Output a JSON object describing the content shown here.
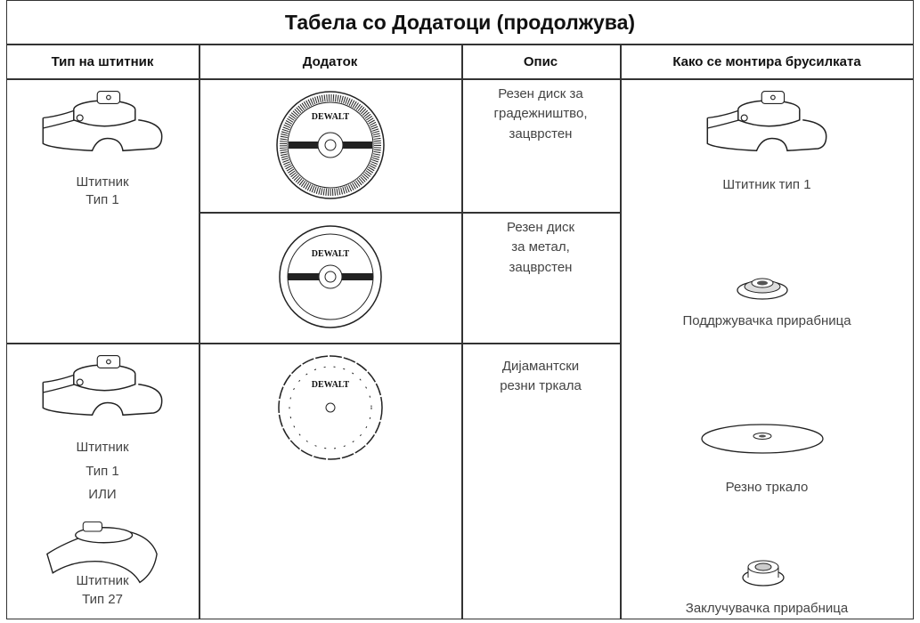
{
  "title": "Табела со Додатоци (продолжува)",
  "headers": [
    "Тип на штитник",
    "Додаток",
    "Опис",
    "Како се монтира брусилката"
  ],
  "rows": [
    {
      "guard": [
        "Штитник",
        "Тип 1"
      ],
      "accessory_brand": "DEWALT",
      "description": [
        "Резен диск за",
        "градежништво,",
        "зацврстен"
      ]
    },
    {
      "accessory_brand": "DEWALT",
      "description": [
        "Резен диск",
        "за метал,",
        "зацврстен"
      ]
    },
    {
      "guard": [
        "Штитник",
        "Тип 1",
        "ИЛИ"
      ],
      "guard_alt": [
        "Штитник",
        "Тип 27"
      ],
      "accessory_brand": "DEWALT",
      "description": [
        "Дијамантски",
        "резни тркала"
      ]
    }
  ],
  "mounting": [
    "Штитник тип 1",
    "Поддржувачка прирабница",
    "Резно тркало",
    "Заклучувачка прирабница"
  ]
}
